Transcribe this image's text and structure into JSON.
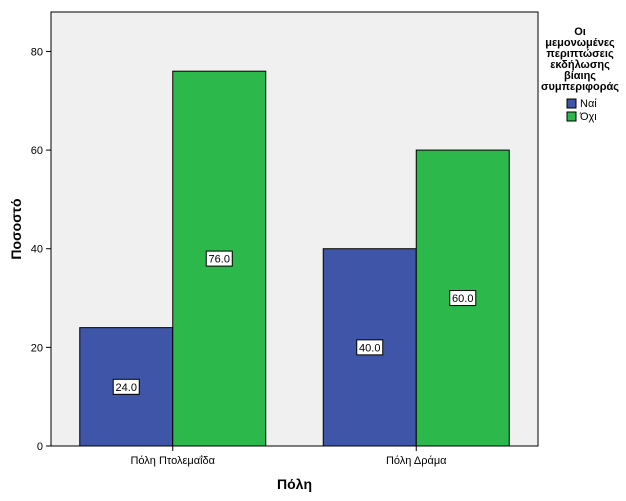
{
  "chart_data": {
    "type": "bar",
    "categories": [
      "Πόλη Πτολεμαΐδα",
      "Πόλη Δράμα"
    ],
    "series": [
      {
        "name": "Ναί",
        "values": [
          24.0,
          40.0
        ],
        "color": "#3f56a8"
      },
      {
        "name": "Όχι",
        "values": [
          76.0,
          60.0
        ],
        "color": "#2db84b"
      }
    ],
    "data_labels": [
      [
        "24.0",
        "40.0"
      ],
      [
        "76.0",
        "60.0"
      ]
    ],
    "xlabel": "Πόλη",
    "ylabel": "Ποσοστό",
    "ylim": [
      0,
      88
    ],
    "yticks": [
      0,
      20,
      40,
      60,
      80
    ],
    "legend": {
      "title_lines": [
        "Οι",
        "μεμονωμένες",
        "περιπτώσεις",
        "εκδήλωσης",
        "βίαιης",
        "συμπεριφοράς"
      ],
      "placement": "right"
    },
    "plot_background": "#f0f0f0"
  }
}
